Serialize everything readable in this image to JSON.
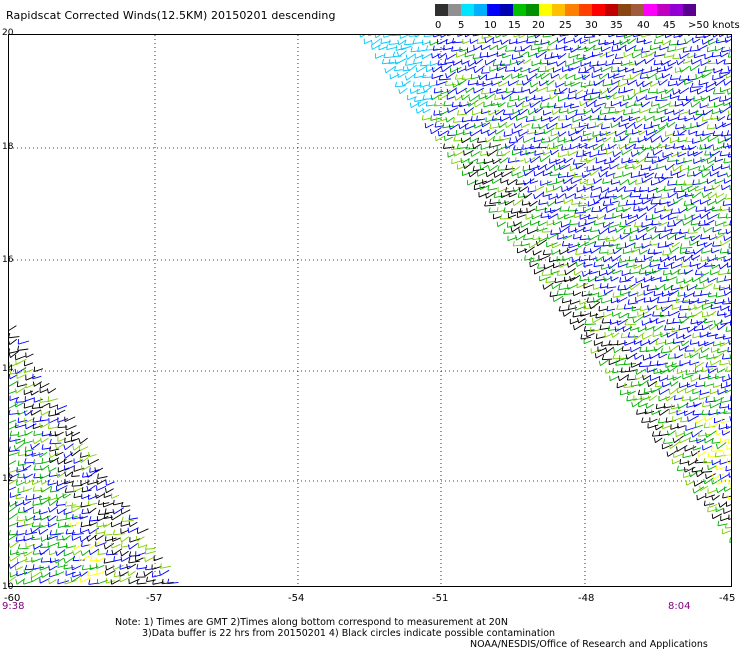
{
  "title": "Rapidscat Corrected Winds(12.5KM) 20150201 descending",
  "colorbar": {
    "colors": [
      "#303030",
      "#909090",
      "#00e5ff",
      "#00b0ff",
      "#0000ff",
      "#0000b4",
      "#00c000",
      "#009000",
      "#ffff00",
      "#ffc000",
      "#ff8000",
      "#ff4000",
      "#ff0000",
      "#c00000",
      "#8b4513",
      "#a05a3c",
      "#ff00ff",
      "#c000c0",
      "#9400d3",
      "#5a0090"
    ],
    "labels": [
      "0",
      "5",
      "10",
      "15",
      "20",
      "25",
      "30",
      "35",
      "40",
      "45",
      ">50 knots"
    ]
  },
  "axes": {
    "y_labels": [
      "20",
      "18",
      "16",
      "14",
      "12",
      "10"
    ],
    "x_labels": [
      "-60",
      "-57",
      "-54",
      "-51",
      "-48",
      "-45"
    ],
    "grid": "dotted"
  },
  "times": {
    "left": "9:38",
    "right": "8:04"
  },
  "notes": [
    "Note: 1) Times are GMT 2)Times along bottom correspond to measurement at 20N",
    "3)Data buffer is 22 hrs from 20150201 4) Black circles indicate possible contamination",
    "NOAA/NESDIS/Office of Research and Applications"
  ],
  "wind_colors": {
    "calm": "#000000",
    "light": "#0000ff",
    "moderate": "#00b000",
    "fresh": "#7cd000",
    "strong": "#ffff00",
    "cyan": "#00c8ff"
  }
}
